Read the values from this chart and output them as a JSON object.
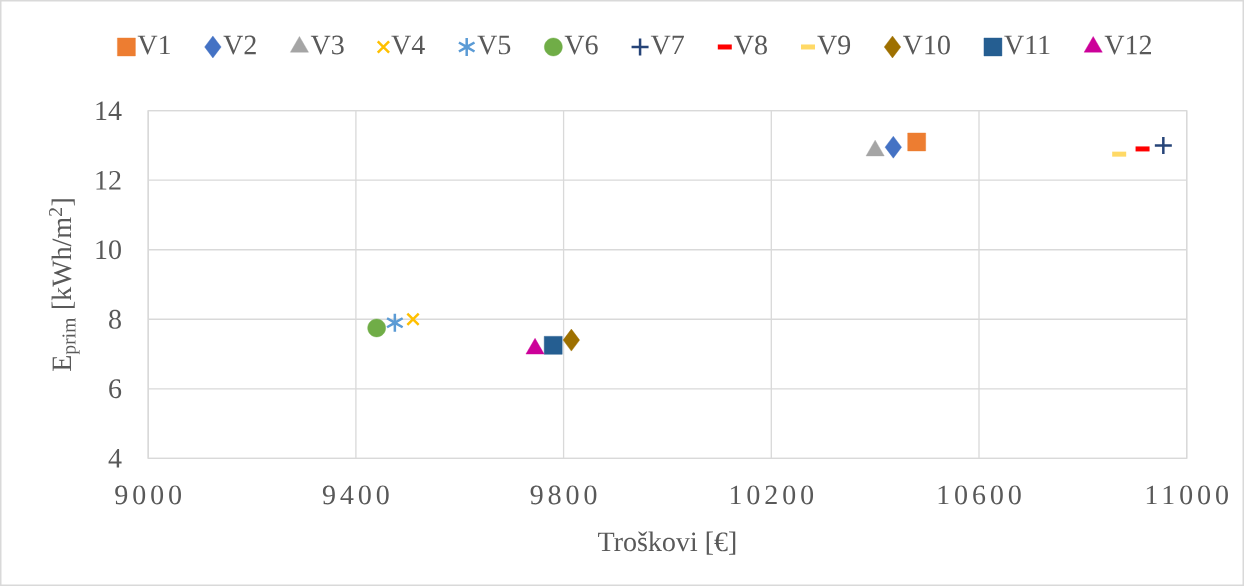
{
  "chart_data": {
    "type": "scatter",
    "xlabel": "Troškovi [€]",
    "ylabel": "E$_{prim}$ [kWh/m$^{2}$]",
    "xlim": [
      9000,
      11000
    ],
    "xticks": [
      9000,
      9400,
      9800,
      10200,
      10600,
      11000
    ],
    "ylim": [
      4,
      14
    ],
    "yticks": [
      4,
      6,
      8,
      10,
      12,
      14
    ],
    "grid": true,
    "legend": "top",
    "series": [
      {
        "name": "V1",
        "color": "#ed7d31",
        "marker": "square",
        "x": [
          10480
        ],
        "values": [
          13.1
        ]
      },
      {
        "name": "V2",
        "color": "#4472c4",
        "marker": "diamond",
        "x": [
          10435
        ],
        "values": [
          12.95
        ]
      },
      {
        "name": "V3",
        "color": "#a5a5a5",
        "marker": "triangle",
        "x": [
          10400
        ],
        "values": [
          12.85
        ]
      },
      {
        "name": "V4",
        "color": "#ffc000",
        "marker": "cross",
        "x": [
          9510
        ],
        "values": [
          8.0
        ]
      },
      {
        "name": "V5",
        "color": "#5b9bd5",
        "marker": "star",
        "x": [
          9475
        ],
        "values": [
          7.9
        ]
      },
      {
        "name": "V6",
        "color": "#70ad47",
        "marker": "circle",
        "x": [
          9440
        ],
        "values": [
          7.75
        ]
      },
      {
        "name": "V7",
        "color": "#264478",
        "marker": "plus",
        "x": [
          10955
        ],
        "values": [
          13.0
        ]
      },
      {
        "name": "V8",
        "color": "#ff0000",
        "x": [
          10915
        ],
        "values": [
          12.9
        ]
      },
      {
        "name": "V9",
        "color": "#ffd966",
        "x": [
          10870
        ],
        "values": [
          12.75
        ]
      },
      {
        "name": "V10",
        "color": "#9e7000",
        "marker": "diamond",
        "x": [
          9815
        ],
        "values": [
          7.4
        ]
      },
      {
        "name": "V11",
        "color": "#255e91",
        "marker": "square",
        "x": [
          9780
        ],
        "values": [
          7.25
        ]
      },
      {
        "name": "V12",
        "color": "#cc0099",
        "marker": "triangle",
        "x": [
          9745
        ],
        "values": [
          7.15
        ]
      }
    ]
  }
}
